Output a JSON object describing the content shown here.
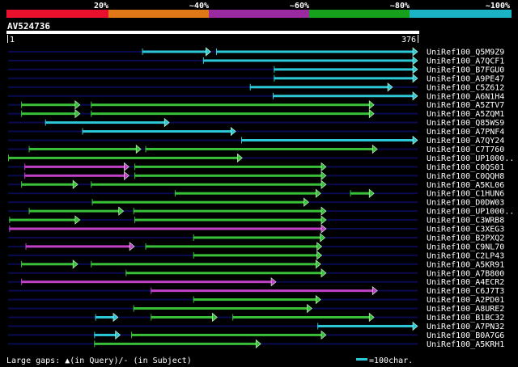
{
  "legend": {
    "labels": [
      "20%",
      "~40%",
      "~60%",
      "~80%",
      "~100%"
    ],
    "colors": [
      "#e8102c",
      "#e07818",
      "#9a2aa0",
      "#16a01c",
      "#1ab4c4"
    ]
  },
  "query": {
    "name": "AV524736",
    "start_label": "1",
    "end_label": "376",
    "length": 376
  },
  "colors": {
    "magenta": "#c040c8",
    "green": "#38c038",
    "cyan": "#2cc8d8",
    "track": "#0a0a50"
  },
  "hits": [
    {
      "label": "UniRef100_Q5M9Z9",
      "segs": [
        [
          123,
          186,
          "cyan"
        ],
        [
          191,
          376,
          "cyan"
        ]
      ]
    },
    {
      "label": "UniRef100_A7QCF1",
      "segs": [
        [
          179,
          376,
          "cyan"
        ]
      ]
    },
    {
      "label": "UniRef100_B7FGU0",
      "segs": [
        [
          244,
          376,
          "cyan"
        ]
      ]
    },
    {
      "label": "UniRef100_A9PE47",
      "segs": [
        [
          244,
          376,
          "cyan"
        ]
      ]
    },
    {
      "label": "UniRef100_C5Z612",
      "segs": [
        [
          222,
          353,
          "cyan"
        ]
      ]
    },
    {
      "label": "UniRef100_A6N1H4",
      "segs": [
        [
          243,
          376,
          "cyan"
        ]
      ]
    },
    {
      "label": "UniRef100_A5ZTV7",
      "segs": [
        [
          12,
          66,
          "green"
        ],
        [
          76,
          336,
          "green"
        ]
      ]
    },
    {
      "label": "UniRef100_A5ZQM1",
      "segs": [
        [
          12,
          66,
          "green"
        ],
        [
          76,
          336,
          "green"
        ]
      ]
    },
    {
      "label": "UniRef100_Q85WS9",
      "segs": [
        [
          34,
          148,
          "cyan"
        ]
      ]
    },
    {
      "label": "UniRef100_A7PNF4",
      "segs": [
        [
          68,
          209,
          "cyan"
        ]
      ]
    },
    {
      "label": "UniRef100_A7QY24",
      "segs": [
        [
          214,
          376,
          "cyan"
        ]
      ]
    },
    {
      "label": "UniRef100_C7T760",
      "segs": [
        [
          19,
          122,
          "green"
        ],
        [
          126,
          339,
          "green"
        ]
      ]
    },
    {
      "label": "UniRef100_UP1000..",
      "segs": [
        [
          0,
          215,
          "green"
        ]
      ]
    },
    {
      "label": "UniRef100_C0QS01",
      "segs": [
        [
          15,
          111,
          "magenta"
        ],
        [
          116,
          292,
          "green"
        ]
      ]
    },
    {
      "label": "UniRef100_C0QQH8",
      "segs": [
        [
          15,
          111,
          "magenta"
        ],
        [
          116,
          292,
          "green"
        ]
      ]
    },
    {
      "label": "UniRef100_A5KL06",
      "segs": [
        [
          12,
          64,
          "green"
        ],
        [
          76,
          292,
          "green"
        ]
      ]
    },
    {
      "label": "UniRef100_C1HUN6",
      "segs": [
        [
          153,
          287,
          "green"
        ],
        [
          314,
          336,
          "green"
        ]
      ]
    },
    {
      "label": "UniRef100_D0DW03",
      "segs": [
        [
          77,
          276,
          "green"
        ]
      ]
    },
    {
      "label": "UniRef100_UP1000..",
      "segs": [
        [
          19,
          106,
          "green"
        ],
        [
          115,
          292,
          "green"
        ]
      ]
    },
    {
      "label": "UniRef100_C3WRB8",
      "segs": [
        [
          1,
          66,
          "green"
        ],
        [
          116,
          292,
          "green"
        ]
      ]
    },
    {
      "label": "UniRef100_C3XEG3",
      "segs": [
        [
          1,
          292,
          "magenta"
        ]
      ]
    },
    {
      "label": "UniRef100_B2PXQ2",
      "segs": [
        [
          170,
          291,
          "green"
        ]
      ]
    },
    {
      "label": "UniRef100_C9NL70",
      "segs": [
        [
          16,
          116,
          "magenta"
        ],
        [
          126,
          288,
          "green"
        ]
      ]
    },
    {
      "label": "UniRef100_C2LP43",
      "segs": [
        [
          170,
          288,
          "green"
        ]
      ]
    },
    {
      "label": "UniRef100_A5KR91",
      "segs": [
        [
          12,
          64,
          "green"
        ],
        [
          76,
          287,
          "green"
        ]
      ]
    },
    {
      "label": "UniRef100_A7B800",
      "segs": [
        [
          108,
          292,
          "green"
        ]
      ]
    },
    {
      "label": "UniRef100_A4ECR2",
      "segs": [
        [
          12,
          246,
          "magenta"
        ]
      ]
    },
    {
      "label": "UniRef100_C6J7T3",
      "segs": [
        [
          131,
          339,
          "magenta"
        ]
      ]
    },
    {
      "label": "UniRef100_A2PD01",
      "segs": [
        [
          170,
          287,
          "green"
        ]
      ]
    },
    {
      "label": "UniRef100_A8URE2",
      "segs": [
        [
          115,
          279,
          "green"
        ]
      ]
    },
    {
      "label": "UniRef100_B1BC32",
      "segs": [
        [
          80,
          101,
          "cyan"
        ],
        [
          131,
          192,
          "green"
        ],
        [
          206,
          336,
          "green"
        ]
      ]
    },
    {
      "label": "UniRef100_A7PN32",
      "segs": [
        [
          284,
          376,
          "cyan"
        ]
      ]
    },
    {
      "label": "UniRef100_B0A7G6",
      "segs": [
        [
          79,
          103,
          "cyan"
        ],
        [
          113,
          292,
          "green"
        ]
      ]
    },
    {
      "label": "UniRef100_A5KRH1",
      "segs": [
        [
          79,
          232,
          "green"
        ]
      ]
    }
  ],
  "footer": {
    "gaps_label": "Large gaps: ▲(in Query)/- (in Subject)",
    "scale_label": "=100char."
  }
}
